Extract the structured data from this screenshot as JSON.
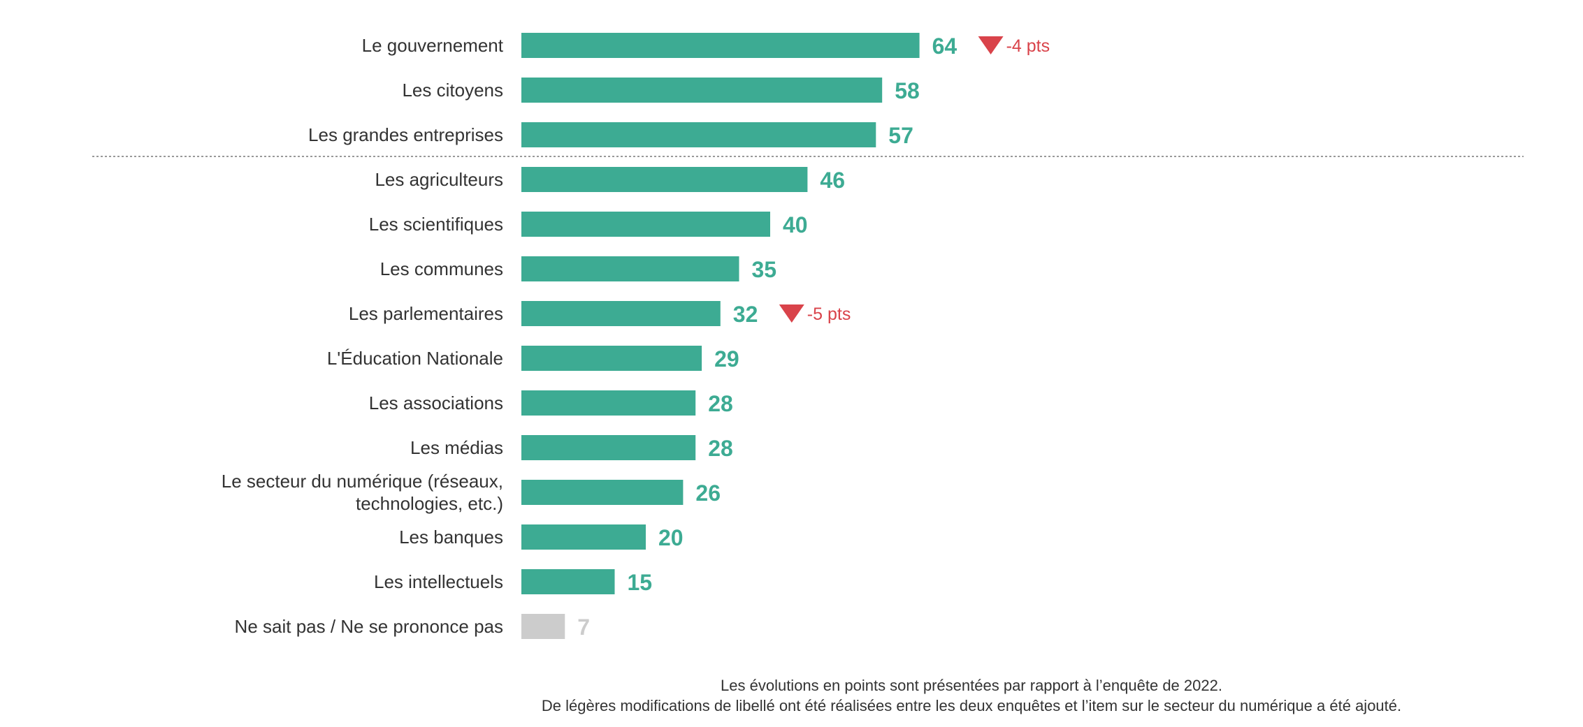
{
  "chart_data": {
    "type": "bar",
    "orientation": "horizontal",
    "categories": [
      [
        "Le gouvernement"
      ],
      [
        "Les citoyens"
      ],
      [
        "Les grandes entreprises"
      ],
      [
        "Les agriculteurs"
      ],
      [
        "Les scientifiques"
      ],
      [
        "Les communes"
      ],
      [
        "Les parlementaires"
      ],
      [
        "L'Éducation Nationale"
      ],
      [
        "Les associations"
      ],
      [
        "Les médias"
      ],
      [
        "Le secteur du numérique (réseaux,",
        "technologies, etc.)"
      ],
      [
        "Les banques"
      ],
      [
        "Les intellectuels"
      ],
      [
        "Ne sait pas / Ne se prononce pas"
      ]
    ],
    "values": [
      64,
      58,
      57,
      46,
      40,
      35,
      32,
      29,
      28,
      28,
      26,
      20,
      15,
      7
    ],
    "value_labels": [
      "64",
      "58",
      "57",
      "46",
      "40",
      "35",
      "32",
      "29",
      "28",
      "28",
      "26",
      "20",
      "15",
      "7"
    ],
    "changes": [
      {
        "index": 0,
        "label": "-4 pts",
        "direction": "down"
      },
      {
        "index": 6,
        "label": "-5 pts",
        "direction": "down"
      }
    ],
    "highlight_separator_after_index": 2,
    "no_answer_index": 13,
    "xlim": [
      0,
      100
    ],
    "grid": false,
    "legend": "none",
    "title": "",
    "xlabel": "",
    "ylabel": ""
  },
  "notes": {
    "line1": "Les évolutions en points sont présentées par rapport à l’enquête de 2022.",
    "line2": "De légères modifications de libellé ont été réalisées entre les deux enquêtes et l’item sur le secteur du numérique a été ajouté."
  },
  "colors": {
    "bar": "#3dab93",
    "bar_no_answer": "#cccccc",
    "value_no_answer": "#cccccc",
    "change_down": "#d9434a",
    "text": "#333333",
    "separator": "#999999"
  }
}
